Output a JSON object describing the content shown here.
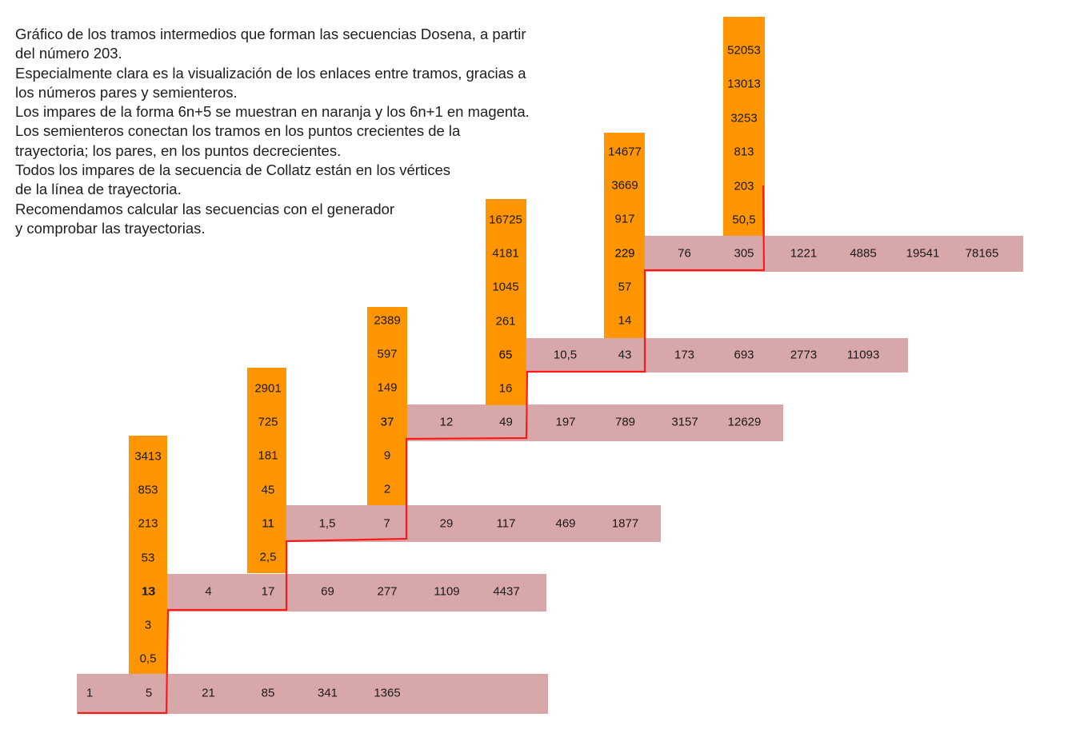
{
  "description_lines": [
    "Gráfico de los tramos intermedios que forman las secuencias Dosena, a partir",
    "del número 203.",
    "Especialmente clara es la visualización de los enlaces entre tramos, gracias a",
    "los números pares y semienteros.",
    "Los impares de la forma 6n+5 se muestran en naranja y los 6n+1 en magenta.",
    "Los semienteros conectan los tramos en los puntos crecientes de la",
    "trayectoria; los pares, en los puntos decrecientes.",
    "Todos los impares de la secuencia de Collatz están en los vértices",
    "de la línea de trayectoria.",
    "Recomendamos calcular las secuencias con el generador",
    "y comprobar las trayectorias."
  ],
  "colors": {
    "vertical_column": "#ff9500",
    "horizontal_band": "#d8a7a9",
    "trajectory_line": "#ff1a1a"
  },
  "vertical_columns": [
    {
      "values": [
        "3413",
        "853",
        "213",
        "53",
        "13",
        "3",
        "0,5"
      ]
    },
    {
      "values": [
        "2901",
        "725",
        "181",
        "45",
        "11",
        "2,5"
      ]
    },
    {
      "values": [
        "2389",
        "597",
        "149",
        "37",
        "9",
        "2"
      ]
    },
    {
      "values": [
        "16725",
        "4181",
        "1045",
        "261",
        "65",
        "16"
      ]
    },
    {
      "values": [
        "14677",
        "3669",
        "917",
        "229",
        "57",
        "14"
      ]
    },
    {
      "values": [
        "52053",
        "13013",
        "3253",
        "813",
        "203",
        "50,5"
      ]
    }
  ],
  "horizontal_bands": [
    {
      "values": [
        "1",
        "5",
        "21",
        "85",
        "341",
        "1365"
      ]
    },
    {
      "values": [
        "13",
        "4",
        "17",
        "69",
        "277",
        "1109",
        "4437"
      ]
    },
    {
      "values": [
        "11",
        "1,5",
        "7",
        "29",
        "117",
        "469",
        "1877"
      ]
    },
    {
      "values": [
        "37",
        "12",
        "49",
        "197",
        "789",
        "3157",
        "12629"
      ]
    },
    {
      "values": [
        "65",
        "10,5",
        "43",
        "173",
        "693",
        "2773",
        "11093"
      ]
    },
    {
      "values": [
        "229",
        "76",
        "305",
        "1221",
        "4885",
        "19541",
        "78165"
      ]
    }
  ]
}
